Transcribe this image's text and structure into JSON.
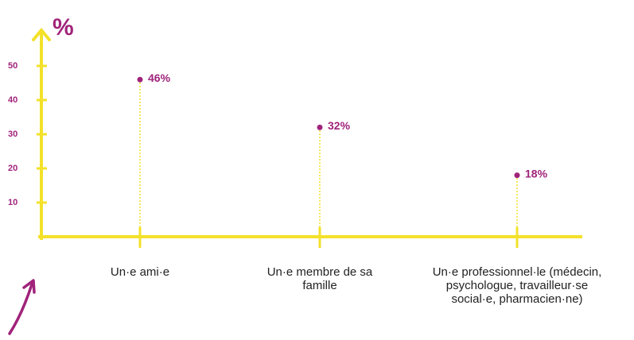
{
  "chart_data": {
    "type": "lollipop",
    "y_label": "%",
    "categories": [
      "Un·e ami·e",
      "Un·e membre de sa famille",
      "Un·e professionnel·le (médecin, psychologue, travailleur·se social·e, pharmacien·ne)"
    ],
    "values": [
      46,
      32,
      18
    ],
    "value_labels": [
      "46%",
      "32%",
      "18%"
    ],
    "color": "#a0237a",
    "axis_color": "#f3e12b",
    "ylim": [
      0,
      60
    ],
    "yticks": [
      10,
      20,
      30,
      40,
      50
    ]
  }
}
